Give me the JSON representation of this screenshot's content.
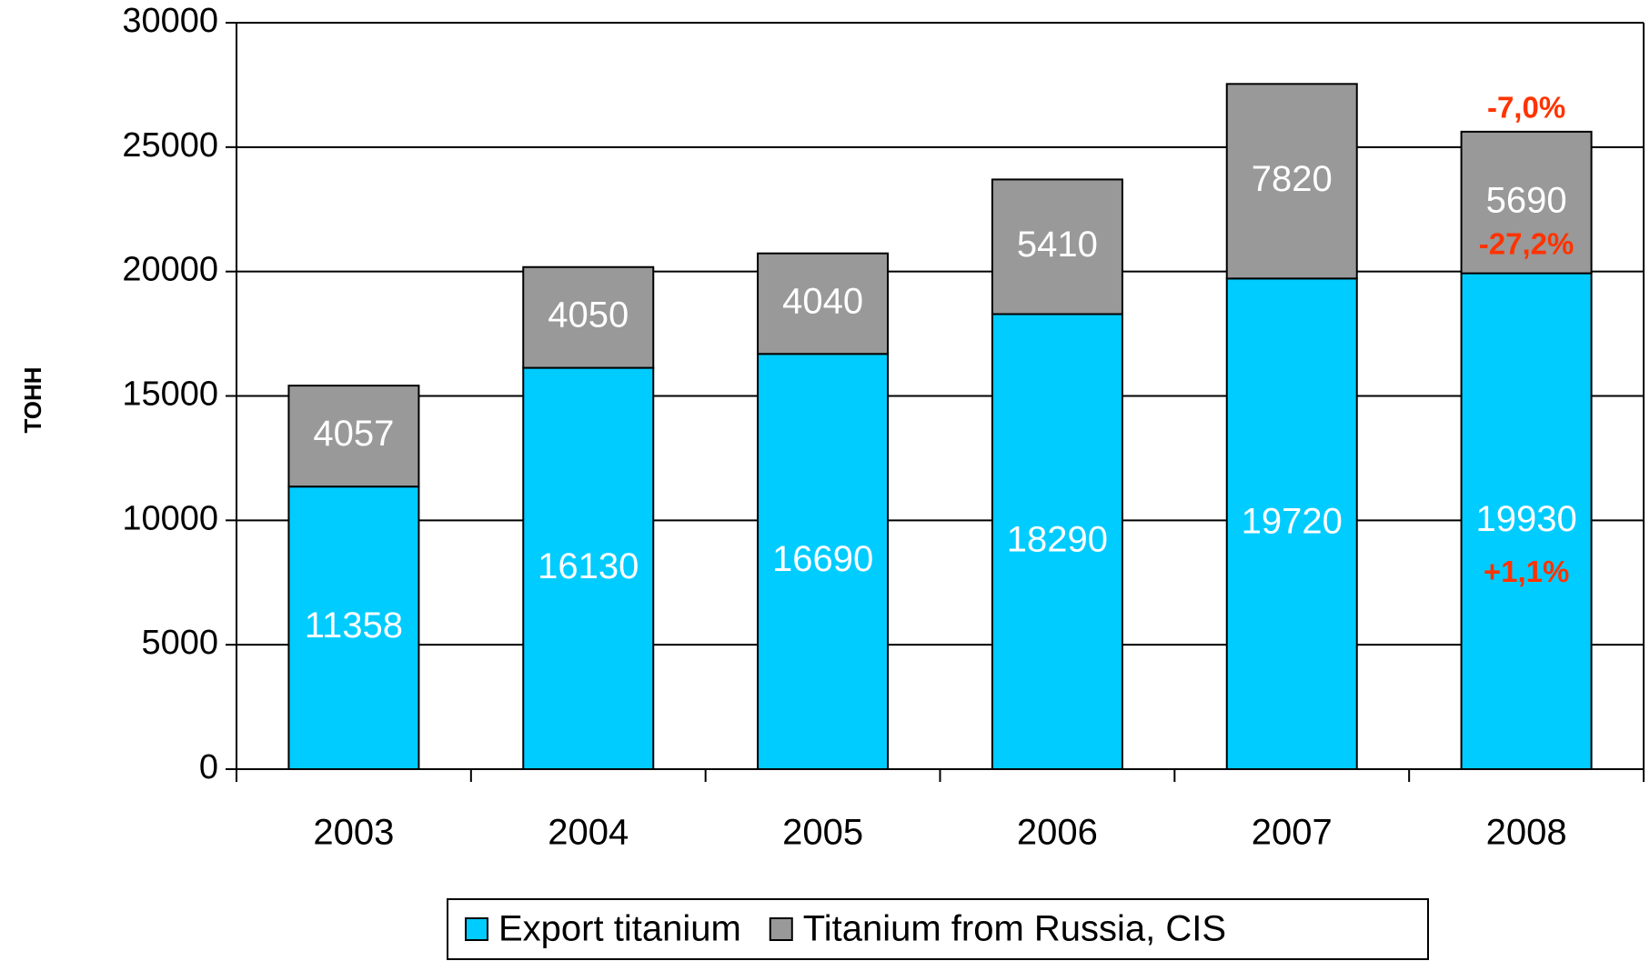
{
  "chart_data": {
    "type": "stacked_bar",
    "y_label": "ТОНН",
    "categories": [
      "2003",
      "2004",
      "2005",
      "2006",
      "2007",
      "2008"
    ],
    "series": [
      {
        "name": "Export titanium",
        "color": "#00ccff",
        "values": [
          11358,
          16130,
          16690,
          18290,
          19720,
          19930
        ]
      },
      {
        "name": "Titanium from Russia, CIS",
        "color": "#999999",
        "values": [
          4057,
          4050,
          4040,
          5410,
          7820,
          5690
        ]
      }
    ],
    "annotations": [
      "-7,0%",
      "-27,2%",
      "+1,1%"
    ],
    "annotation_color": "#ff3300",
    "ylim": [
      0,
      30000
    ],
    "yticks": [
      0,
      5000,
      10000,
      15000,
      20000,
      25000,
      30000
    ],
    "grid": true,
    "legend": "bottom"
  }
}
